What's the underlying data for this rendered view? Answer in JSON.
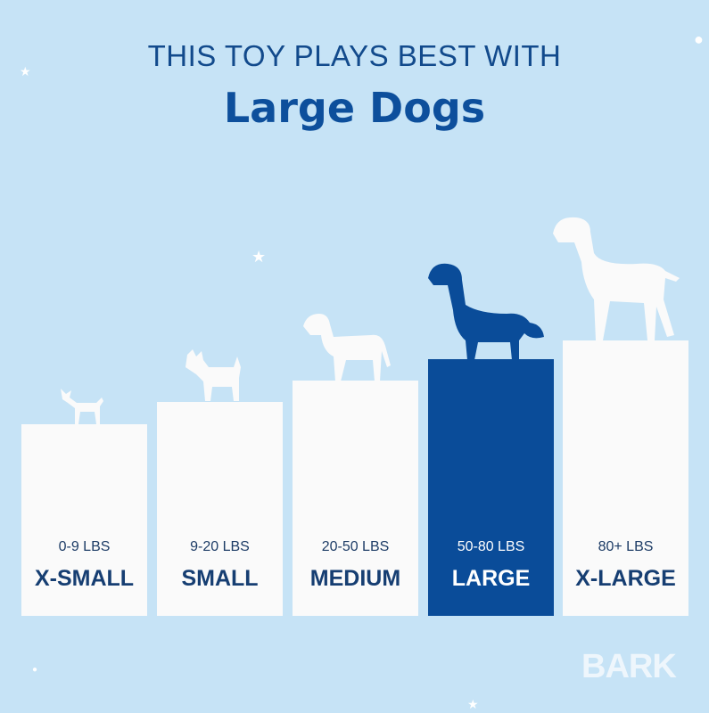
{
  "header": {
    "line1": "THIS TOY PLAYS BEST WITH",
    "line2": "Large Dogs"
  },
  "sizes": [
    {
      "weight": "0-9 LBS",
      "name": "X-SMALL",
      "highlighted": false
    },
    {
      "weight": "9-20 LBS",
      "name": "SMALL",
      "highlighted": false
    },
    {
      "weight": "20-50 LBS",
      "name": "MEDIUM",
      "highlighted": false
    },
    {
      "weight": "50-80 LBS",
      "name": "LARGE",
      "highlighted": true
    },
    {
      "weight": "80+ LBS",
      "name": "X-LARGE",
      "highlighted": false
    }
  ],
  "brand": {
    "logo": "BARK"
  },
  "colors": {
    "background": "#c6e3f6",
    "accent": "#0a4c99",
    "text": "#163e72",
    "bar": "#fafafa"
  }
}
